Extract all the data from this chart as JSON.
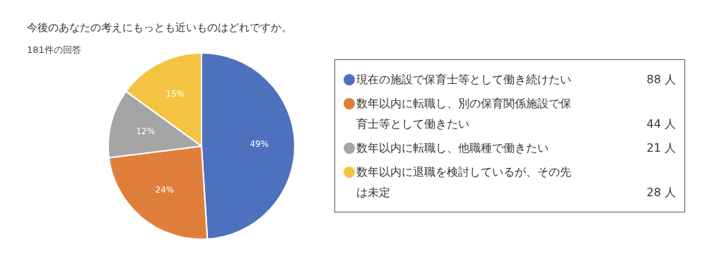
{
  "chart_data": {
    "type": "pie",
    "title": "今後のあなたの考えにもっとも近いものはどれですか。",
    "subtitle": "181件の回答",
    "categories": [
      "現在の施設で保育士等として働き続けたい",
      "数年以内に転職し、別の保育関係施設で保育士等として働きたい",
      "数年以内に転職し、他職種で働きたい",
      "数年以内に退職を検討しているが、その先は未定"
    ],
    "values": [
      49,
      24,
      12,
      15
    ],
    "value_labels": [
      "49%",
      "24%",
      "12%",
      "15%"
    ],
    "colors": [
      "#4e71be",
      "#e07f3c",
      "#a5a5a5",
      "#f5c342"
    ],
    "annotations": [
      "88 人",
      "44 人",
      "21 人",
      "28 人"
    ],
    "legend": "right"
  }
}
